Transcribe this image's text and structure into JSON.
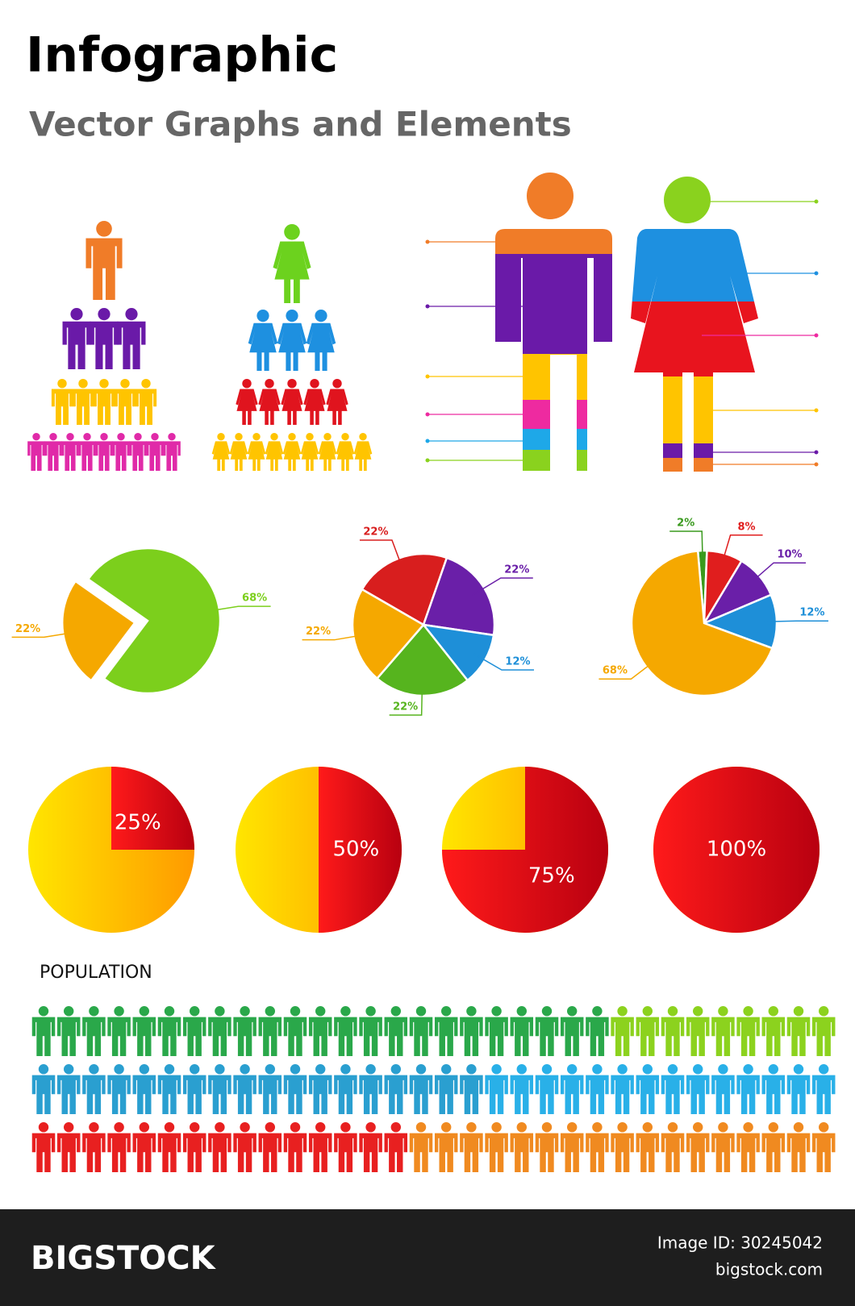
{
  "header": {
    "title": "Infographic",
    "subtitle": "Vector Graphs and Elements"
  },
  "chart_data": [
    {
      "type": "pie",
      "values": [
        68,
        22
      ],
      "value_labels": [
        "68%",
        "22%"
      ],
      "colors": [
        "#7ccf1c",
        "#f5a800"
      ]
    },
    {
      "type": "pie",
      "values": [
        22,
        22,
        12,
        22,
        22
      ],
      "value_labels": [
        "22%",
        "22%",
        "12%",
        "22%",
        "22%"
      ],
      "colors": [
        "#d81e1e",
        "#6a1fa8",
        "#1e8fd8",
        "#56b41e",
        "#f5a800"
      ]
    },
    {
      "type": "pie",
      "values": [
        2,
        8,
        10,
        12,
        68
      ],
      "value_labels": [
        "2%",
        "8%",
        "10%",
        "12%",
        "68%"
      ],
      "colors": [
        "#3a9a1e",
        "#e01e1e",
        "#6a1fa8",
        "#1e8fd8",
        "#f5a800"
      ]
    },
    {
      "type": "gauge",
      "values": [
        25
      ],
      "value_labels": [
        "25%"
      ],
      "colors": [
        "#dd1111"
      ]
    },
    {
      "type": "gauge",
      "values": [
        50
      ],
      "value_labels": [
        "50%"
      ],
      "colors": [
        "#dd1111"
      ]
    },
    {
      "type": "gauge",
      "values": [
        75
      ],
      "value_labels": [
        "75%"
      ],
      "colors": [
        "#dd1111"
      ]
    },
    {
      "type": "gauge",
      "values": [
        100
      ],
      "value_labels": [
        "100%"
      ],
      "colors": [
        "#dd1111"
      ]
    }
  ],
  "population": {
    "label": "POPULATION"
  },
  "footer": {
    "brand": "BIGSTOCK",
    "image_id": "Image ID: 30245042",
    "site": "bigstock.com"
  }
}
